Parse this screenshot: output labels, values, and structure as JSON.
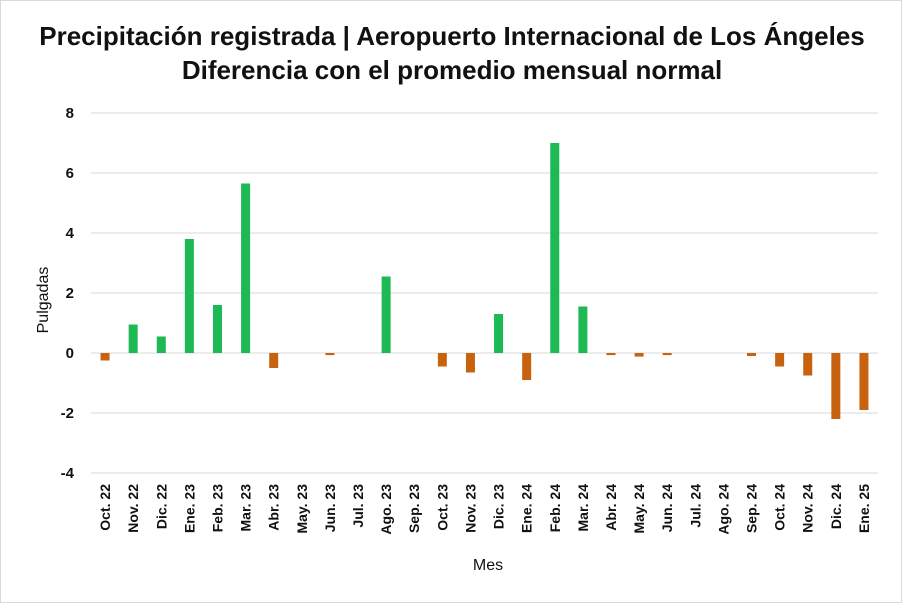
{
  "chart_data": {
    "type": "bar",
    "title": "Precipitación registrada | Aeropuerto Internacional de Los Ángeles",
    "subtitle": "Diferencia con el promedio mensual normal",
    "xlabel": "Mes",
    "ylabel": "Pulgadas",
    "ylim": [
      -4,
      8
    ],
    "yticks": [
      "8",
      "6",
      "4",
      "2",
      "0",
      "-2",
      "-4"
    ],
    "grid": true,
    "positive_color": "#1db954",
    "negative_color": "#c8620f",
    "categories": [
      "Oct. 22",
      "Nov. 22",
      "Dic. 22",
      "Ene. 23",
      "Feb. 23",
      "Mar. 23",
      "Abr. 23",
      "May. 23",
      "Jun. 23",
      "Jul. 23",
      "Ago. 23",
      "Sep. 23",
      "Oct. 23",
      "Nov. 23",
      "Dic. 23",
      "Ene. 24",
      "Feb. 24",
      "Mar. 24",
      "Abr. 24",
      "May. 24",
      "Jun. 24",
      "Jul. 24",
      "Ago. 24",
      "Sep. 24",
      "Oct. 24",
      "Nov. 24",
      "Dic. 24",
      "Ene. 25"
    ],
    "values": [
      -0.25,
      0.95,
      0.55,
      3.8,
      1.6,
      5.65,
      -0.5,
      0.0,
      -0.07,
      0.0,
      2.55,
      0.0,
      -0.45,
      -0.65,
      1.3,
      -0.9,
      7.0,
      1.55,
      -0.07,
      -0.12,
      -0.07,
      0.0,
      0.0,
      -0.1,
      -0.45,
      -0.75,
      -2.2,
      -1.9
    ]
  }
}
